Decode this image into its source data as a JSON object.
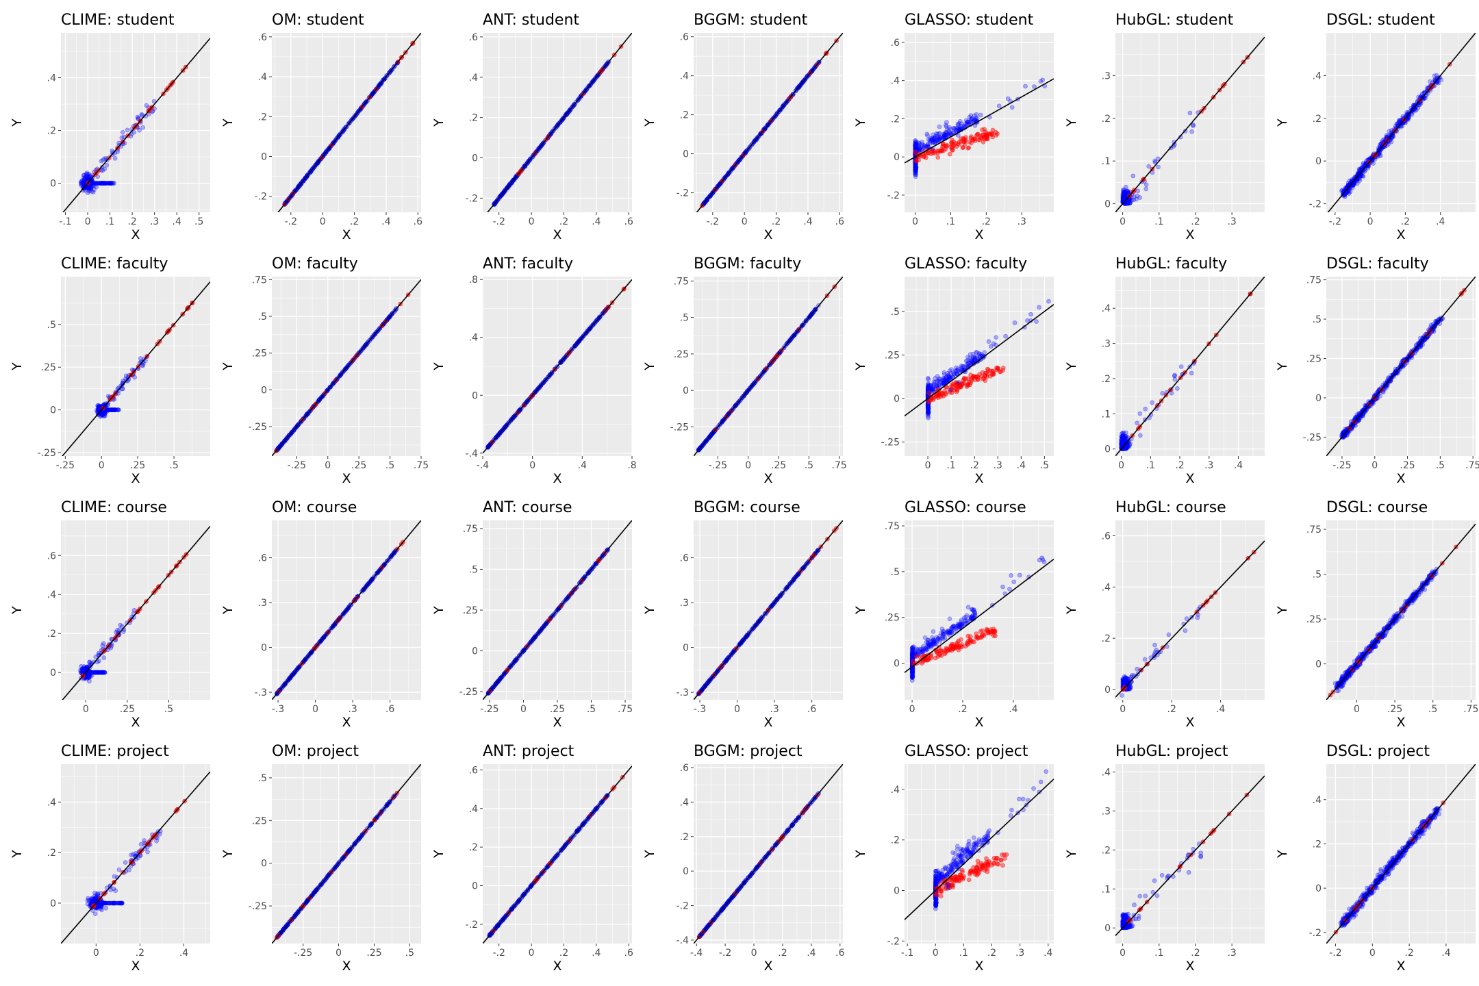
{
  "figure": {
    "nrows": 4,
    "ncols": 7
  },
  "colors": {
    "panel_bg": "#EBEBEB",
    "grid": "#FFFFFF",
    "blue": "#0000FF",
    "red": "#FF0000",
    "line": "#000000"
  },
  "chart_data": [
    {
      "type": "scatter",
      "title": "CLIME: student",
      "xlabel": "X",
      "ylabel": "Y",
      "xlim": [
        -0.12,
        0.55
      ],
      "ylim": [
        -0.11,
        0.57
      ],
      "xticks": [
        -0.1,
        0,
        0.1,
        0.2,
        0.3,
        0.4,
        0.5
      ],
      "yticks": [
        0,
        0.2,
        0.4
      ],
      "pattern": "clime",
      "line": {
        "slope": 1,
        "intercept": 0
      }
    },
    {
      "type": "scatter",
      "title": "OM: student",
      "xlabel": "X",
      "ylabel": "Y",
      "xlim": [
        -0.32,
        0.62
      ],
      "ylim": [
        -0.28,
        0.62
      ],
      "xticks": [
        -0.2,
        0,
        0.2,
        0.4,
        0.6
      ],
      "yticks": [
        -0.2,
        0,
        0.2,
        0.4,
        0.6
      ],
      "pattern": "diag",
      "line": {
        "slope": 1,
        "intercept": 0
      }
    },
    {
      "type": "scatter",
      "title": "ANT: student",
      "xlabel": "X",
      "ylabel": "Y",
      "xlim": [
        -0.3,
        0.62
      ],
      "ylim": [
        -0.27,
        0.62
      ],
      "xticks": [
        -0.2,
        0,
        0.2,
        0.4,
        0.6
      ],
      "yticks": [
        -0.2,
        0,
        0.2,
        0.4,
        0.6
      ],
      "pattern": "diag",
      "line": {
        "slope": 1,
        "intercept": 0
      }
    },
    {
      "type": "scatter",
      "title": "BGGM: student",
      "xlabel": "X",
      "ylabel": "Y",
      "xlim": [
        -0.32,
        0.62
      ],
      "ylim": [
        -0.3,
        0.62
      ],
      "xticks": [
        -0.2,
        0,
        0.2,
        0.4,
        0.6
      ],
      "yticks": [
        -0.2,
        0,
        0.2,
        0.4,
        0.6
      ],
      "pattern": "diag",
      "line": {
        "slope": 1,
        "intercept": 0
      }
    },
    {
      "type": "scatter",
      "title": "GLASSO: student",
      "xlabel": "X",
      "ylabel": "Y",
      "xlim": [
        -0.03,
        0.39
      ],
      "ylim": [
        -0.29,
        0.65
      ],
      "xticks": [
        0,
        0.1,
        0.2,
        0.3
      ],
      "yticks": [
        -0.2,
        0,
        0.2,
        0.4,
        0.6
      ],
      "pattern": "glasso",
      "line": {
        "slope": 1.05,
        "intercept": 0
      }
    },
    {
      "type": "scatter",
      "title": "HubGL: student",
      "xlabel": "X",
      "ylabel": "Y",
      "xlim": [
        -0.02,
        0.39
      ],
      "ylim": [
        -0.02,
        0.4
      ],
      "xticks": [
        0,
        0.1,
        0.2,
        0.3
      ],
      "yticks": [
        0,
        0.1,
        0.2,
        0.3
      ],
      "pattern": "hub",
      "line": {
        "slope": 1,
        "intercept": 0
      }
    },
    {
      "type": "scatter",
      "title": "DSGL: student",
      "xlabel": "X",
      "ylabel": "Y",
      "xlim": [
        -0.25,
        0.6
      ],
      "ylim": [
        -0.24,
        0.6
      ],
      "xticks": [
        -0.2,
        0,
        0.2,
        0.4
      ],
      "yticks": [
        -0.2,
        0,
        0.2,
        0.4
      ],
      "pattern": "dsgl",
      "line": {
        "slope": 1,
        "intercept": 0
      }
    },
    {
      "type": "scatter",
      "title": "CLIME: faculty",
      "xlabel": "X",
      "ylabel": "Y",
      "xlim": [
        -0.28,
        0.75
      ],
      "ylim": [
        -0.27,
        0.78
      ],
      "xticks": [
        -0.25,
        0,
        0.25,
        0.5
      ],
      "yticks": [
        -0.25,
        0,
        0.25,
        0.5
      ],
      "pattern": "clime",
      "line": {
        "slope": 1,
        "intercept": 0
      }
    },
    {
      "type": "scatter",
      "title": "OM: faculty",
      "xlabel": "X",
      "ylabel": "Y",
      "xlim": [
        -0.45,
        0.75
      ],
      "ylim": [
        -0.45,
        0.77
      ],
      "xticks": [
        -0.25,
        0,
        0.25,
        0.5,
        0.75
      ],
      "yticks": [
        -0.25,
        0,
        0.25,
        0.5,
        0.75
      ],
      "pattern": "diag",
      "line": {
        "slope": 1,
        "intercept": 0
      }
    },
    {
      "type": "scatter",
      "title": "ANT: faculty",
      "xlabel": "X",
      "ylabel": "Y",
      "xlim": [
        -0.4,
        0.8
      ],
      "ylim": [
        -0.42,
        0.82
      ],
      "xticks": [
        -0.4,
        0,
        0.4,
        0.8
      ],
      "yticks": [
        -0.4,
        0,
        0.4,
        0.8
      ],
      "pattern": "diag",
      "line": {
        "slope": 1,
        "intercept": 0
      }
    },
    {
      "type": "scatter",
      "title": "BGGM: faculty",
      "xlabel": "X",
      "ylabel": "Y",
      "xlim": [
        -0.45,
        0.78
      ],
      "ylim": [
        -0.45,
        0.78
      ],
      "xticks": [
        -0.25,
        0,
        0.25,
        0.5,
        0.75
      ],
      "yticks": [
        -0.25,
        0,
        0.25,
        0.5,
        0.75
      ],
      "pattern": "diag",
      "line": {
        "slope": 1,
        "intercept": 0
      }
    },
    {
      "type": "scatter",
      "title": "GLASSO: faculty",
      "xlabel": "X",
      "ylabel": "Y",
      "xlim": [
        -0.1,
        0.54
      ],
      "ylim": [
        -0.33,
        0.7
      ],
      "xticks": [
        0,
        0.1,
        0.2,
        0.3,
        0.4,
        0.5
      ],
      "yticks": [
        -0.25,
        0,
        0.25,
        0.5
      ],
      "pattern": "glasso",
      "line": {
        "slope": 1,
        "intercept": 0
      }
    },
    {
      "type": "scatter",
      "title": "HubGL: faculty",
      "xlabel": "X",
      "ylabel": "Y",
      "xlim": [
        -0.02,
        0.49
      ],
      "ylim": [
        -0.02,
        0.49
      ],
      "xticks": [
        0,
        0.1,
        0.2,
        0.3,
        0.4
      ],
      "yticks": [
        0,
        0.1,
        0.2,
        0.3,
        0.4
      ],
      "pattern": "hub",
      "line": {
        "slope": 1,
        "intercept": 0
      }
    },
    {
      "type": "scatter",
      "title": "DSGL: faculty",
      "xlabel": "X",
      "ylabel": "Y",
      "xlim": [
        -0.37,
        0.77
      ],
      "ylim": [
        -0.37,
        0.77
      ],
      "xticks": [
        -0.25,
        0,
        0.25,
        0.5,
        0.75
      ],
      "yticks": [
        -0.25,
        0,
        0.25,
        0.5,
        0.75
      ],
      "pattern": "dsgl",
      "line": {
        "slope": 1,
        "intercept": 0
      }
    },
    {
      "type": "scatter",
      "title": "CLIME: course",
      "xlabel": "X",
      "ylabel": "Y",
      "xlim": [
        -0.15,
        0.75
      ],
      "ylim": [
        -0.14,
        0.78
      ],
      "xticks": [
        0,
        0.25,
        0.5
      ],
      "yticks": [
        0,
        0.2,
        0.4,
        0.6
      ],
      "pattern": "clime",
      "line": {
        "slope": 1,
        "intercept": 0
      }
    },
    {
      "type": "scatter",
      "title": "OM: course",
      "xlabel": "X",
      "ylabel": "Y",
      "xlim": [
        -0.35,
        0.85
      ],
      "ylim": [
        -0.35,
        0.85
      ],
      "xticks": [
        -0.3,
        0,
        0.3,
        0.6
      ],
      "yticks": [
        -0.3,
        0,
        0.3,
        0.6
      ],
      "pattern": "diag",
      "line": {
        "slope": 1,
        "intercept": 0
      }
    },
    {
      "type": "scatter",
      "title": "ANT: course",
      "xlabel": "X",
      "ylabel": "Y",
      "xlim": [
        -0.3,
        0.8
      ],
      "ylim": [
        -0.3,
        0.8
      ],
      "xticks": [
        -0.25,
        0,
        0.25,
        0.5,
        0.75
      ],
      "yticks": [
        -0.25,
        0,
        0.25,
        0.5,
        0.75
      ],
      "pattern": "diag",
      "line": {
        "slope": 1,
        "intercept": 0
      }
    },
    {
      "type": "scatter",
      "title": "BGGM: course",
      "xlabel": "X",
      "ylabel": "Y",
      "xlim": [
        -0.35,
        0.85
      ],
      "ylim": [
        -0.35,
        0.85
      ],
      "xticks": [
        -0.3,
        0,
        0.3,
        0.6
      ],
      "yticks": [
        -0.3,
        0,
        0.3,
        0.6
      ],
      "pattern": "diag",
      "line": {
        "slope": 1,
        "intercept": 0
      }
    },
    {
      "type": "scatter",
      "title": "GLASSO: course",
      "xlabel": "X",
      "ylabel": "Y",
      "xlim": [
        -0.03,
        0.56
      ],
      "ylim": [
        -0.2,
        0.78
      ],
      "xticks": [
        0,
        0.2,
        0.4
      ],
      "yticks": [
        0,
        0.25,
        0.5,
        0.75
      ],
      "pattern": "glasso",
      "line": {
        "slope": 1.05,
        "intercept": -0.02
      }
    },
    {
      "type": "scatter",
      "title": "HubGL: course",
      "xlabel": "X",
      "ylabel": "Y",
      "xlim": [
        -0.03,
        0.58
      ],
      "ylim": [
        -0.04,
        0.66
      ],
      "xticks": [
        0,
        0.2,
        0.4
      ],
      "yticks": [
        0,
        0.2,
        0.4,
        0.6
      ],
      "pattern": "hub",
      "line": {
        "slope": 1,
        "intercept": 0
      }
    },
    {
      "type": "scatter",
      "title": "DSGL: course",
      "xlabel": "X",
      "ylabel": "Y",
      "xlim": [
        -0.2,
        0.78
      ],
      "ylim": [
        -0.2,
        0.8
      ],
      "xticks": [
        0,
        0.25,
        0.5,
        0.75
      ],
      "yticks": [
        0,
        0.25,
        0.5,
        0.75
      ],
      "pattern": "dsgl",
      "line": {
        "slope": 1,
        "intercept": 0
      }
    },
    {
      "type": "scatter",
      "title": "CLIME: project",
      "xlabel": "X",
      "ylabel": "Y",
      "xlim": [
        -0.16,
        0.52
      ],
      "ylim": [
        -0.16,
        0.55
      ],
      "xticks": [
        0,
        0.2,
        0.4
      ],
      "yticks": [
        0,
        0.2,
        0.4
      ],
      "pattern": "clime",
      "line": {
        "slope": 1,
        "intercept": 0
      }
    },
    {
      "type": "scatter",
      "title": "OM: project",
      "xlabel": "X",
      "ylabel": "Y",
      "xlim": [
        -0.47,
        0.58
      ],
      "ylim": [
        -0.47,
        0.58
      ],
      "xticks": [
        -0.25,
        0,
        0.25,
        0.5
      ],
      "yticks": [
        -0.25,
        0,
        0.25,
        0.5
      ],
      "pattern": "diag",
      "line": {
        "slope": 1,
        "intercept": 0
      }
    },
    {
      "type": "scatter",
      "title": "ANT: project",
      "xlabel": "X",
      "ylabel": "Y",
      "xlim": [
        -0.3,
        0.62
      ],
      "ylim": [
        -0.3,
        0.63
      ],
      "xticks": [
        -0.2,
        0,
        0.2,
        0.4,
        0.6
      ],
      "yticks": [
        -0.2,
        0,
        0.2,
        0.4,
        0.6
      ],
      "pattern": "diag",
      "line": {
        "slope": 1,
        "intercept": 0
      }
    },
    {
      "type": "scatter",
      "title": "BGGM: project",
      "xlabel": "X",
      "ylabel": "Y",
      "xlim": [
        -0.42,
        0.62
      ],
      "ylim": [
        -0.42,
        0.62
      ],
      "xticks": [
        -0.4,
        -0.2,
        0,
        0.2,
        0.4,
        0.6
      ],
      "yticks": [
        -0.4,
        -0.2,
        0,
        0.2,
        0.4,
        0.6
      ],
      "pattern": "diag",
      "line": {
        "slope": 1,
        "intercept": 0
      }
    },
    {
      "type": "scatter",
      "title": "GLASSO: project",
      "xlabel": "X",
      "ylabel": "Y",
      "xlim": [
        -0.11,
        0.42
      ],
      "ylim": [
        -0.21,
        0.5
      ],
      "xticks": [
        -0.1,
        0,
        0.1,
        0.2,
        0.3,
        0.4
      ],
      "yticks": [
        -0.2,
        0,
        0.2,
        0.4
      ],
      "pattern": "glasso",
      "line": {
        "slope": 1.05,
        "intercept": 0
      }
    },
    {
      "type": "scatter",
      "title": "HubGL: project",
      "xlabel": "X",
      "ylabel": "Y",
      "xlim": [
        -0.02,
        0.39
      ],
      "ylim": [
        -0.04,
        0.42
      ],
      "xticks": [
        0,
        0.1,
        0.2,
        0.3
      ],
      "yticks": [
        0,
        0.1,
        0.2,
        0.3,
        0.4
      ],
      "pattern": "hub",
      "line": {
        "slope": 1,
        "intercept": 0
      }
    },
    {
      "type": "scatter",
      "title": "DSGL: project",
      "xlabel": "X",
      "ylabel": "Y",
      "xlim": [
        -0.25,
        0.56
      ],
      "ylim": [
        -0.25,
        0.56
      ],
      "xticks": [
        -0.2,
        0,
        0.2,
        0.4
      ],
      "yticks": [
        -0.2,
        0,
        0.2,
        0.4
      ],
      "pattern": "dsgl",
      "line": {
        "slope": 1,
        "intercept": 0
      }
    }
  ]
}
